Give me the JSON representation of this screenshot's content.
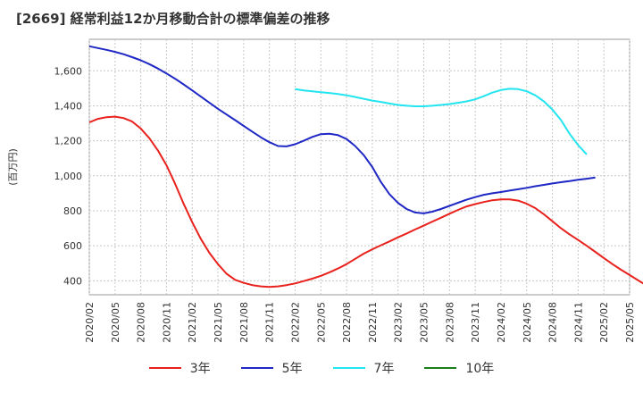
{
  "chart_data": {
    "type": "line",
    "title": "[2669]  経常利益12か月移動合計の標準偏差の推移",
    "ylabel": "(百万円)",
    "ylim": [
      320,
      1780
    ],
    "yticks": [
      400,
      600,
      800,
      1000,
      1200,
      1400,
      1600
    ],
    "yticklabels": [
      "400",
      "600",
      "800",
      "1,000",
      "1,200",
      "1,400",
      "1,600"
    ],
    "xticks": [
      "2020/02",
      "2020/05",
      "2020/08",
      "2020/11",
      "2021/02",
      "2021/05",
      "2021/08",
      "2021/11",
      "2022/02",
      "2022/05",
      "2022/08",
      "2022/11",
      "2023/02",
      "2023/05",
      "2023/08",
      "2023/11",
      "2024/02",
      "2024/05",
      "2024/08",
      "2024/11",
      "2025/02",
      "2025/05"
    ],
    "grid": true,
    "legend_position": "bottom",
    "series": [
      {
        "name": "3年",
        "color": "#e8211c",
        "values": [
          [
            0,
            1305
          ],
          [
            1,
            1325
          ],
          [
            2,
            1335
          ],
          [
            3,
            1338
          ],
          [
            4,
            1330
          ],
          [
            5,
            1310
          ],
          [
            6,
            1270
          ],
          [
            7,
            1215
          ],
          [
            8,
            1145
          ],
          [
            9,
            1060
          ],
          [
            10,
            955
          ],
          [
            11,
            840
          ],
          [
            12,
            735
          ],
          [
            13,
            640
          ],
          [
            14,
            560
          ],
          [
            15,
            495
          ],
          [
            16,
            440
          ],
          [
            17,
            405
          ],
          [
            18,
            388
          ],
          [
            19,
            375
          ],
          [
            20,
            368
          ],
          [
            21,
            365
          ],
          [
            22,
            368
          ],
          [
            23,
            375
          ],
          [
            24,
            385
          ],
          [
            25,
            398
          ],
          [
            26,
            412
          ],
          [
            27,
            428
          ],
          [
            28,
            448
          ],
          [
            29,
            470
          ],
          [
            30,
            495
          ],
          [
            31,
            525
          ],
          [
            32,
            555
          ],
          [
            33,
            580
          ],
          [
            34,
            603
          ],
          [
            35,
            625
          ],
          [
            36,
            648
          ],
          [
            37,
            670
          ],
          [
            38,
            693
          ],
          [
            39,
            715
          ],
          [
            40,
            738
          ],
          [
            41,
            760
          ],
          [
            42,
            783
          ],
          [
            43,
            805
          ],
          [
            44,
            825
          ],
          [
            45,
            838
          ],
          [
            46,
            850
          ],
          [
            47,
            860
          ],
          [
            48,
            865
          ],
          [
            49,
            865
          ],
          [
            50,
            858
          ],
          [
            51,
            840
          ],
          [
            52,
            815
          ],
          [
            53,
            780
          ],
          [
            54,
            740
          ],
          [
            55,
            700
          ],
          [
            56,
            665
          ],
          [
            57,
            633
          ],
          [
            58,
            600
          ],
          [
            59,
            565
          ],
          [
            60,
            530
          ],
          [
            61,
            495
          ],
          [
            62,
            463
          ],
          [
            63,
            433
          ],
          [
            64,
            402
          ],
          [
            65,
            372
          ],
          [
            66,
            345
          ]
        ]
      },
      {
        "name": "5年",
        "color": "#1f28c4",
        "values": [
          [
            0,
            1740
          ],
          [
            1,
            1730
          ],
          [
            2,
            1720
          ],
          [
            3,
            1708
          ],
          [
            4,
            1695
          ],
          [
            5,
            1678
          ],
          [
            6,
            1660
          ],
          [
            7,
            1638
          ],
          [
            8,
            1613
          ],
          [
            9,
            1585
          ],
          [
            10,
            1555
          ],
          [
            11,
            1522
          ],
          [
            12,
            1488
          ],
          [
            13,
            1453
          ],
          [
            14,
            1418
          ],
          [
            15,
            1383
          ],
          [
            16,
            1350
          ],
          [
            17,
            1318
          ],
          [
            18,
            1285
          ],
          [
            19,
            1252
          ],
          [
            20,
            1220
          ],
          [
            21,
            1192
          ],
          [
            22,
            1170
          ],
          [
            23,
            1168
          ],
          [
            24,
            1180
          ],
          [
            25,
            1200
          ],
          [
            26,
            1222
          ],
          [
            27,
            1238
          ],
          [
            28,
            1240
          ],
          [
            29,
            1232
          ],
          [
            30,
            1210
          ],
          [
            31,
            1170
          ],
          [
            32,
            1118
          ],
          [
            33,
            1050
          ],
          [
            34,
            965
          ],
          [
            35,
            895
          ],
          [
            36,
            845
          ],
          [
            37,
            810
          ],
          [
            38,
            790
          ],
          [
            39,
            785
          ],
          [
            40,
            795
          ],
          [
            41,
            810
          ],
          [
            42,
            828
          ],
          [
            43,
            846
          ],
          [
            44,
            863
          ],
          [
            45,
            878
          ],
          [
            46,
            891
          ],
          [
            47,
            900
          ],
          [
            48,
            907
          ],
          [
            49,
            915
          ],
          [
            50,
            923
          ],
          [
            51,
            931
          ],
          [
            52,
            940
          ],
          [
            53,
            948
          ],
          [
            54,
            956
          ],
          [
            55,
            963
          ],
          [
            56,
            970
          ],
          [
            57,
            977
          ],
          [
            58,
            983
          ],
          [
            59,
            990
          ]
        ],
        "x_offset": 0
      },
      {
        "name": "7年",
        "color": "#22e5f0",
        "values": [
          [
            24,
            1495
          ],
          [
            25,
            1488
          ],
          [
            26,
            1483
          ],
          [
            27,
            1478
          ],
          [
            28,
            1473
          ],
          [
            29,
            1467
          ],
          [
            30,
            1460
          ],
          [
            31,
            1450
          ],
          [
            32,
            1440
          ],
          [
            33,
            1430
          ],
          [
            34,
            1422
          ],
          [
            35,
            1413
          ],
          [
            36,
            1405
          ],
          [
            37,
            1400
          ],
          [
            38,
            1397
          ],
          [
            39,
            1397
          ],
          [
            40,
            1400
          ],
          [
            41,
            1405
          ],
          [
            42,
            1410
          ],
          [
            43,
            1417
          ],
          [
            44,
            1425
          ],
          [
            45,
            1437
          ],
          [
            46,
            1455
          ],
          [
            47,
            1475
          ],
          [
            48,
            1490
          ],
          [
            49,
            1497
          ],
          [
            50,
            1495
          ],
          [
            51,
            1483
          ],
          [
            52,
            1460
          ],
          [
            53,
            1425
          ],
          [
            54,
            1378
          ],
          [
            55,
            1318
          ],
          [
            56,
            1240
          ],
          [
            57,
            1175
          ],
          [
            58,
            1122
          ]
        ]
      },
      {
        "name": "10年",
        "color": "#1a7f1a",
        "values": []
      }
    ]
  }
}
